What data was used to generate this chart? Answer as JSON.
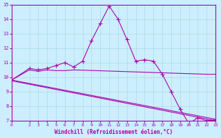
{
  "background_color": "#cceeff",
  "line_color": "#aa00aa",
  "grid_color": "#aadddd",
  "xlabel": "Windchill (Refroidissement éolien,°C)",
  "xlim": [
    0,
    23
  ],
  "ylim": [
    7,
    15
  ],
  "yticks": [
    7,
    8,
    9,
    10,
    11,
    12,
    13,
    14,
    15
  ],
  "xticks": [
    0,
    2,
    3,
    4,
    5,
    6,
    7,
    8,
    9,
    10,
    11,
    12,
    13,
    14,
    15,
    16,
    17,
    18,
    19,
    20,
    21,
    22,
    23
  ],
  "line0_x": [
    0,
    2,
    3,
    4,
    5,
    6,
    7,
    8,
    9,
    10,
    11,
    12,
    13,
    14,
    15,
    16,
    17,
    18,
    19,
    20,
    21,
    22,
    23
  ],
  "line0_y": [
    9.8,
    10.6,
    10.5,
    10.6,
    10.8,
    11.0,
    10.7,
    11.1,
    12.5,
    13.7,
    14.9,
    14.0,
    12.6,
    11.1,
    11.2,
    11.1,
    10.2,
    9.0,
    7.8,
    6.8,
    7.2,
    7.0,
    7.05
  ],
  "line1_x": [
    0,
    2,
    3,
    4,
    5,
    6,
    7,
    22,
    23
  ],
  "line1_y": [
    9.8,
    10.5,
    10.4,
    10.5,
    10.45,
    10.45,
    10.5,
    10.2,
    10.2
  ],
  "line2_x": [
    0,
    23
  ],
  "line2_y": [
    9.8,
    7.1
  ],
  "line3_x": [
    0,
    23
  ],
  "line3_y": [
    9.75,
    7.0
  ]
}
